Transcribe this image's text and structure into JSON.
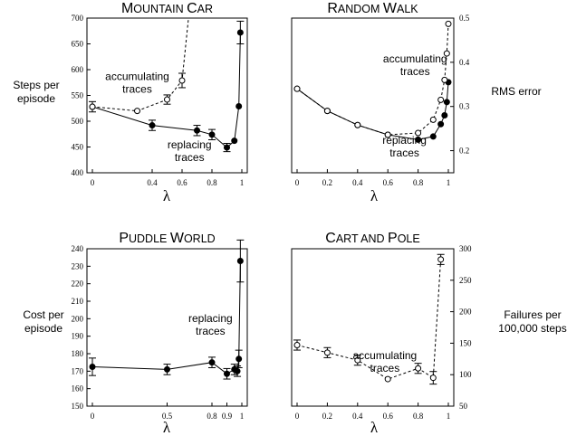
{
  "chart_data": [
    {
      "type": "line",
      "title_parts": [
        [
          "M",
          "big"
        ],
        [
          "OUNTAIN ",
          "small"
        ],
        [
          "C",
          "big"
        ],
        [
          "AR",
          "small"
        ]
      ],
      "xlabel": "λ",
      "ylabel_lines": [
        "Steps per",
        "episode"
      ],
      "ylabel_side": "left",
      "xlim": [
        0,
        1
      ],
      "ylim": [
        400,
        700
      ],
      "x_ticks": [
        0,
        0.4,
        0.6,
        0.8,
        1
      ],
      "y_ticks": [
        400,
        450,
        500,
        550,
        600,
        650,
        700
      ],
      "grid": false,
      "series": [
        {
          "name": "replacing traces",
          "style": "solid",
          "marker": "filled-circle",
          "points": [
            {
              "x": 0,
              "y": 528,
              "err": 10
            },
            {
              "x": 0.4,
              "y": 492,
              "err": 10
            },
            {
              "x": 0.7,
              "y": 482,
              "err": 10
            },
            {
              "x": 0.8,
              "y": 474,
              "err": 10
            },
            {
              "x": 0.9,
              "y": 449,
              "err": 8
            },
            {
              "x": 0.95,
              "y": 462
            },
            {
              "x": 0.98,
              "y": 529
            },
            {
              "x": 0.99,
              "y": 672,
              "err": 22
            }
          ]
        },
        {
          "name": "accumulating traces",
          "style": "dashed",
          "marker": "open-circle",
          "points": [
            {
              "x": 0,
              "y": 528
            },
            {
              "x": 0.3,
              "y": 520
            },
            {
              "x": 0.5,
              "y": 542,
              "err": 9
            },
            {
              "x": 0.6,
              "y": 579,
              "err": 14
            },
            {
              "x": 0.65,
              "y": 720
            }
          ]
        }
      ],
      "annotations": [
        {
          "lines": [
            "accumulating",
            "traces"
          ],
          "x": 0.3,
          "y": 580
        },
        {
          "lines": [
            "replacing",
            "traces"
          ],
          "x": 0.65,
          "y": 447
        }
      ]
    },
    {
      "type": "line",
      "title_parts": [
        [
          "R",
          "big"
        ],
        [
          "ANDOM ",
          "small"
        ],
        [
          "W",
          "big"
        ],
        [
          "ALK",
          "small"
        ]
      ],
      "xlabel": "λ",
      "ylabel_lines": [
        "RMS error"
      ],
      "ylabel_side": "right",
      "xlim": [
        0,
        1
      ],
      "ylim": [
        0.15,
        0.5
      ],
      "x_ticks": [
        0,
        0.2,
        0.4,
        0.6,
        0.8,
        1
      ],
      "y_ticks": [
        0.2,
        0.3,
        0.4,
        0.5
      ],
      "grid": false,
      "series": [
        {
          "name": "replacing traces",
          "style": "solid",
          "marker": "filled-circle",
          "points": [
            {
              "x": 0,
              "y": 0.34
            },
            {
              "x": 0.2,
              "y": 0.29
            },
            {
              "x": 0.4,
              "y": 0.258
            },
            {
              "x": 0.6,
              "y": 0.236
            },
            {
              "x": 0.8,
              "y": 0.225
            },
            {
              "x": 0.9,
              "y": 0.232
            },
            {
              "x": 0.95,
              "y": 0.26
            },
            {
              "x": 0.975,
              "y": 0.28
            },
            {
              "x": 0.99,
              "y": 0.31
            },
            {
              "x": 1,
              "y": 0.355
            }
          ]
        },
        {
          "name": "accumulating traces",
          "style": "dashed",
          "marker": "open-circle",
          "points": [
            {
              "x": 0,
              "y": 0.34
            },
            {
              "x": 0.2,
              "y": 0.29
            },
            {
              "x": 0.4,
              "y": 0.258
            },
            {
              "x": 0.6,
              "y": 0.236
            },
            {
              "x": 0.8,
              "y": 0.24
            },
            {
              "x": 0.9,
              "y": 0.27
            },
            {
              "x": 0.95,
              "y": 0.315
            },
            {
              "x": 0.975,
              "y": 0.36
            },
            {
              "x": 0.99,
              "y": 0.42
            },
            {
              "x": 1,
              "y": 0.487
            }
          ]
        }
      ],
      "annotations": [
        {
          "lines": [
            "accumulating",
            "traces"
          ],
          "x": 0.78,
          "y": 0.4
        },
        {
          "lines": [
            "replacing",
            "traces"
          ],
          "x": 0.71,
          "y": 0.215
        }
      ]
    },
    {
      "type": "line",
      "title_parts": [
        [
          "P",
          "big"
        ],
        [
          "UDDLE ",
          "small"
        ],
        [
          "W",
          "big"
        ],
        [
          "ORLD",
          "small"
        ]
      ],
      "xlabel": "λ",
      "ylabel_lines": [
        "Cost per",
        "episode"
      ],
      "ylabel_side": "left",
      "xlim": [
        0,
        1
      ],
      "ylim": [
        150,
        240
      ],
      "x_ticks": [
        0,
        0.5,
        0.8,
        0.9,
        1
      ],
      "y_ticks": [
        150,
        160,
        170,
        180,
        190,
        200,
        210,
        220,
        230,
        240
      ],
      "grid": false,
      "series": [
        {
          "name": "replacing traces",
          "style": "solid",
          "marker": "filled-circle",
          "points": [
            {
              "x": 0,
              "y": 172.5,
              "err": 5
            },
            {
              "x": 0.5,
              "y": 171,
              "err": 3
            },
            {
              "x": 0.8,
              "y": 175,
              "err": 3
            },
            {
              "x": 0.9,
              "y": 168.5,
              "err": 3
            },
            {
              "x": 0.95,
              "y": 171,
              "err": 3
            },
            {
              "x": 0.97,
              "y": 170,
              "err": 3
            },
            {
              "x": 0.98,
              "y": 177,
              "err": 5
            },
            {
              "x": 0.99,
              "y": 233,
              "err": 12
            }
          ]
        }
      ],
      "annotations": [
        {
          "lines": [
            "replacing",
            "traces"
          ],
          "x": 0.79,
          "y": 198
        }
      ]
    },
    {
      "type": "line",
      "title_parts": [
        [
          "C",
          "big"
        ],
        [
          "ART AND ",
          "small"
        ],
        [
          "P",
          "big"
        ],
        [
          "OLE",
          "small"
        ]
      ],
      "xlabel": "λ",
      "ylabel_lines": [
        "Failures per",
        "100,000 steps"
      ],
      "ylabel_side": "right",
      "xlim": [
        0,
        1
      ],
      "ylim": [
        50,
        300
      ],
      "x_ticks": [
        0,
        0.2,
        0.4,
        0.6,
        0.8,
        1
      ],
      "y_ticks": [
        50,
        100,
        150,
        200,
        250,
        300
      ],
      "grid": false,
      "series": [
        {
          "name": "accumulating traces",
          "style": "dashed",
          "marker": "open-circle",
          "points": [
            {
              "x": 0,
              "y": 147,
              "err": 8
            },
            {
              "x": 0.2,
              "y": 135,
              "err": 8
            },
            {
              "x": 0.4,
              "y": 123,
              "err": 8
            },
            {
              "x": 0.6,
              "y": 93
            },
            {
              "x": 0.8,
              "y": 110,
              "err": 8
            },
            {
              "x": 0.9,
              "y": 95,
              "err": 10
            },
            {
              "x": 0.95,
              "y": 283,
              "err": 8
            }
          ]
        }
      ],
      "annotations": [
        {
          "lines": [
            "accumulating",
            "traces"
          ],
          "x": 0.58,
          "y": 125
        }
      ]
    }
  ]
}
